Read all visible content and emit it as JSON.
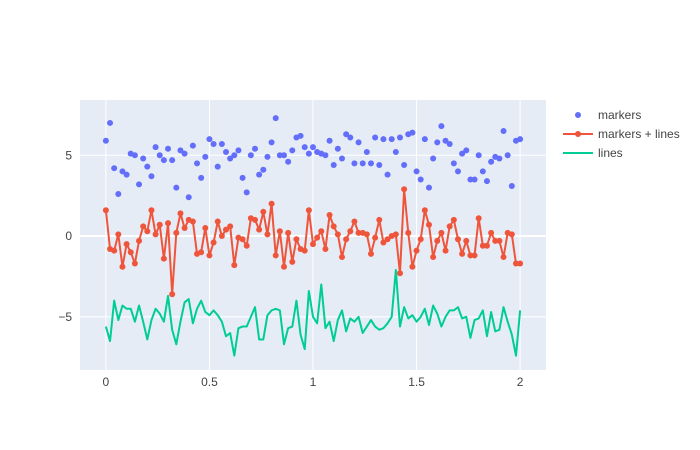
{
  "chart_data": {
    "type": "scatter",
    "x": [
      0.0,
      0.02,
      0.04,
      0.06,
      0.08,
      0.1,
      0.12,
      0.14,
      0.16,
      0.18,
      0.2,
      0.22,
      0.24,
      0.26,
      0.28,
      0.3,
      0.32,
      0.34,
      0.36,
      0.38,
      0.4,
      0.42,
      0.44,
      0.46,
      0.48,
      0.5,
      0.52,
      0.54,
      0.56,
      0.58,
      0.6,
      0.62,
      0.64,
      0.66,
      0.68,
      0.7,
      0.72,
      0.74,
      0.76,
      0.78,
      0.8,
      0.82,
      0.84,
      0.86,
      0.88,
      0.9,
      0.92,
      0.94,
      0.96,
      0.98,
      1.0,
      1.02,
      1.04,
      1.06,
      1.08,
      1.1,
      1.12,
      1.14,
      1.16,
      1.18,
      1.2,
      1.22,
      1.24,
      1.26,
      1.28,
      1.3,
      1.32,
      1.34,
      1.36,
      1.38,
      1.4,
      1.42,
      1.44,
      1.46,
      1.48,
      1.5,
      1.52,
      1.54,
      1.56,
      1.58,
      1.6,
      1.62,
      1.64,
      1.66,
      1.68,
      1.7,
      1.72,
      1.74,
      1.76,
      1.78,
      1.8,
      1.82,
      1.84,
      1.86,
      1.88,
      1.9,
      1.92,
      1.94,
      1.96,
      1.98,
      2.0
    ],
    "series": [
      {
        "name": "markers",
        "mode": "markers",
        "color": "#636efa",
        "values": [
          5.9,
          7.0,
          4.2,
          2.6,
          4.0,
          3.8,
          5.1,
          5.0,
          3.2,
          4.8,
          4.3,
          3.7,
          5.5,
          5.0,
          4.7,
          5.4,
          4.7,
          3.0,
          5.3,
          5.1,
          2.4,
          5.6,
          4.5,
          3.6,
          4.9,
          6.0,
          5.7,
          4.3,
          5.7,
          5.2,
          4.8,
          5.0,
          5.3,
          3.6,
          2.7,
          5.0,
          5.4,
          3.8,
          4.1,
          4.9,
          5.8,
          7.3,
          5.0,
          5.0,
          4.6,
          5.3,
          6.1,
          6.2,
          5.5,
          5.1,
          5.5,
          5.2,
          5.1,
          5.0,
          5.9,
          4.4,
          5.4,
          4.8,
          6.3,
          6.1,
          4.5,
          5.8,
          4.5,
          5.2,
          4.5,
          6.1,
          4.4,
          6.0,
          3.8,
          6.0,
          5.2,
          6.1,
          4.4,
          6.3,
          6.4,
          4.0,
          3.5,
          6.0,
          3.0,
          4.8,
          5.8,
          6.8,
          5.9,
          5.7,
          4.5,
          4.0,
          5.1,
          5.3,
          3.5,
          3.5,
          5.0,
          4.0,
          3.4,
          4.6,
          4.9,
          4.8,
          6.5,
          5.0,
          3.1,
          5.9,
          6.0
        ]
      },
      {
        "name": "markers + lines",
        "mode": "lines+markers",
        "color": "#ef553b",
        "values": [
          1.6,
          -0.8,
          -0.9,
          0.1,
          -1.9,
          -0.5,
          -1.0,
          -1.7,
          -0.3,
          0.6,
          0.3,
          1.6,
          0.1,
          0.7,
          -1.4,
          0.8,
          -3.6,
          0.2,
          1.4,
          0.5,
          1.0,
          0.9,
          -1.1,
          -1.0,
          0.5,
          -1.2,
          -0.4,
          0.9,
          0.0,
          0.4,
          0.6,
          -1.8,
          -0.1,
          -0.2,
          -0.6,
          1.1,
          1.0,
          0.4,
          1.5,
          0.1,
          2.0,
          -1.2,
          0.3,
          -1.9,
          0.2,
          -1.6,
          -0.2,
          -0.8,
          -0.9,
          1.6,
          -0.5,
          -0.1,
          0.3,
          -0.8,
          1.3,
          0.6,
          0.1,
          -1.3,
          -0.2,
          0.3,
          0.9,
          0.2,
          0.2,
          0.1,
          -1.1,
          -0.1,
          1.0,
          -0.4,
          -0.2,
          0.0,
          0.1,
          -2.3,
          2.9,
          0.2,
          -1.9,
          -0.9,
          -0.2,
          1.6,
          0.7,
          -1.3,
          -0.3,
          0.2,
          -0.9,
          0.6,
          1.0,
          -0.2,
          -1.1,
          -0.3,
          -1.2,
          -1.2,
          1.1,
          -0.6,
          -0.6,
          0.2,
          -0.3,
          -0.3,
          -1.3,
          0.2,
          0.1,
          -1.7,
          -1.7
        ]
      },
      {
        "name": "lines",
        "mode": "lines",
        "color": "#00cc96",
        "values": [
          -5.6,
          -6.5,
          -4.0,
          -5.2,
          -4.3,
          -4.5,
          -4.5,
          -5.3,
          -4.3,
          -5.3,
          -6.4,
          -5.2,
          -4.5,
          -4.8,
          -5.3,
          -3.7,
          -5.8,
          -6.7,
          -5.3,
          -4.1,
          -3.9,
          -5.4,
          -4.5,
          -4.0,
          -4.7,
          -4.9,
          -4.6,
          -4.9,
          -5.3,
          -6.2,
          -6.0,
          -7.4,
          -5.7,
          -5.6,
          -5.6,
          -5.0,
          -4.4,
          -6.4,
          -6.4,
          -4.9,
          -4.6,
          -4.5,
          -4.6,
          -6.7,
          -5.7,
          -5.6,
          -4.0,
          -6.1,
          -7.0,
          -3.4,
          -5.0,
          -5.4,
          -3.0,
          -5.7,
          -5.3,
          -6.5,
          -5.2,
          -4.6,
          -5.9,
          -5.1,
          -5.3,
          -5.0,
          -6.0,
          -5.6,
          -5.2,
          -5.6,
          -5.8,
          -5.7,
          -5.4,
          -5.0,
          -2.1,
          -5.6,
          -4.4,
          -5.1,
          -4.9,
          -5.3,
          -5.0,
          -4.5,
          -5.5,
          -4.3,
          -4.8,
          -5.6,
          -5.0,
          -4.6,
          -4.6,
          -4.4,
          -5.1,
          -5.0,
          -6.3,
          -5.2,
          -5.1,
          -4.6,
          -6.2,
          -4.7,
          -5.9,
          -5.8,
          -4.4,
          -5.3,
          -6.1,
          -7.4,
          -4.6
        ]
      }
    ],
    "xlim": [
      -0.125,
      2.125
    ],
    "ylim": [
      -8.29,
      8.42
    ],
    "x_tick_labels": [
      "0",
      "0.5",
      "1",
      "1.5",
      "2"
    ],
    "y_tick_labels": [
      "−5",
      "0",
      "5"
    ],
    "grid": true,
    "legend_position": "top-right",
    "plot_background": "#e5ecf6",
    "title": "",
    "xlabel": "",
    "ylabel": ""
  }
}
